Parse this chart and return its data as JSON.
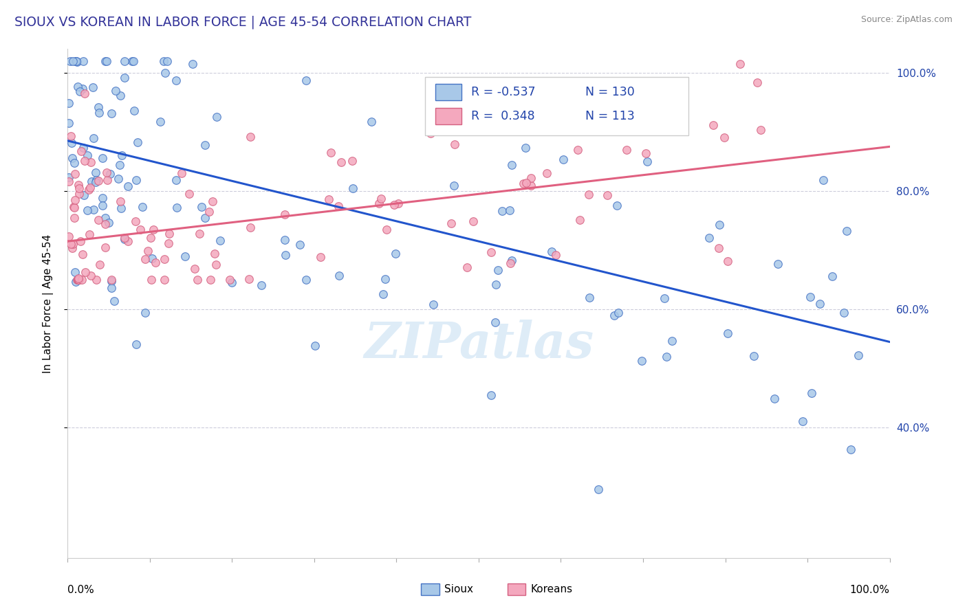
{
  "title": "SIOUX VS KOREAN IN LABOR FORCE | AGE 45-54 CORRELATION CHART",
  "source_text": "Source: ZipAtlas.com",
  "ylabel": "In Labor Force | Age 45-54",
  "ytick_vals": [
    0.4,
    0.6,
    0.8,
    1.0
  ],
  "ytick_labels": [
    "40.0%",
    "60.0%",
    "80.0%",
    "100.0%"
  ],
  "sioux_color": "#A8C8E8",
  "korean_color": "#F4A8BE",
  "sioux_edge_color": "#4472C4",
  "korean_edge_color": "#D46080",
  "sioux_line_color": "#2255CC",
  "korean_line_color": "#E06080",
  "watermark_color": "#D0E4F5",
  "legend_box_color": "#EEEEEE",
  "legend_text_color": "#2244AA",
  "grid_color": "#C8C8D8",
  "xlim": [
    0.0,
    1.0
  ],
  "ylim": [
    0.18,
    1.04
  ],
  "sioux_line_x0": 0.0,
  "sioux_line_y0": 0.885,
  "sioux_line_x1": 1.0,
  "sioux_line_y1": 0.545,
  "korean_line_x0": 0.0,
  "korean_line_y0": 0.715,
  "korean_line_x1": 1.0,
  "korean_line_y1": 0.875,
  "marker_size": 70
}
